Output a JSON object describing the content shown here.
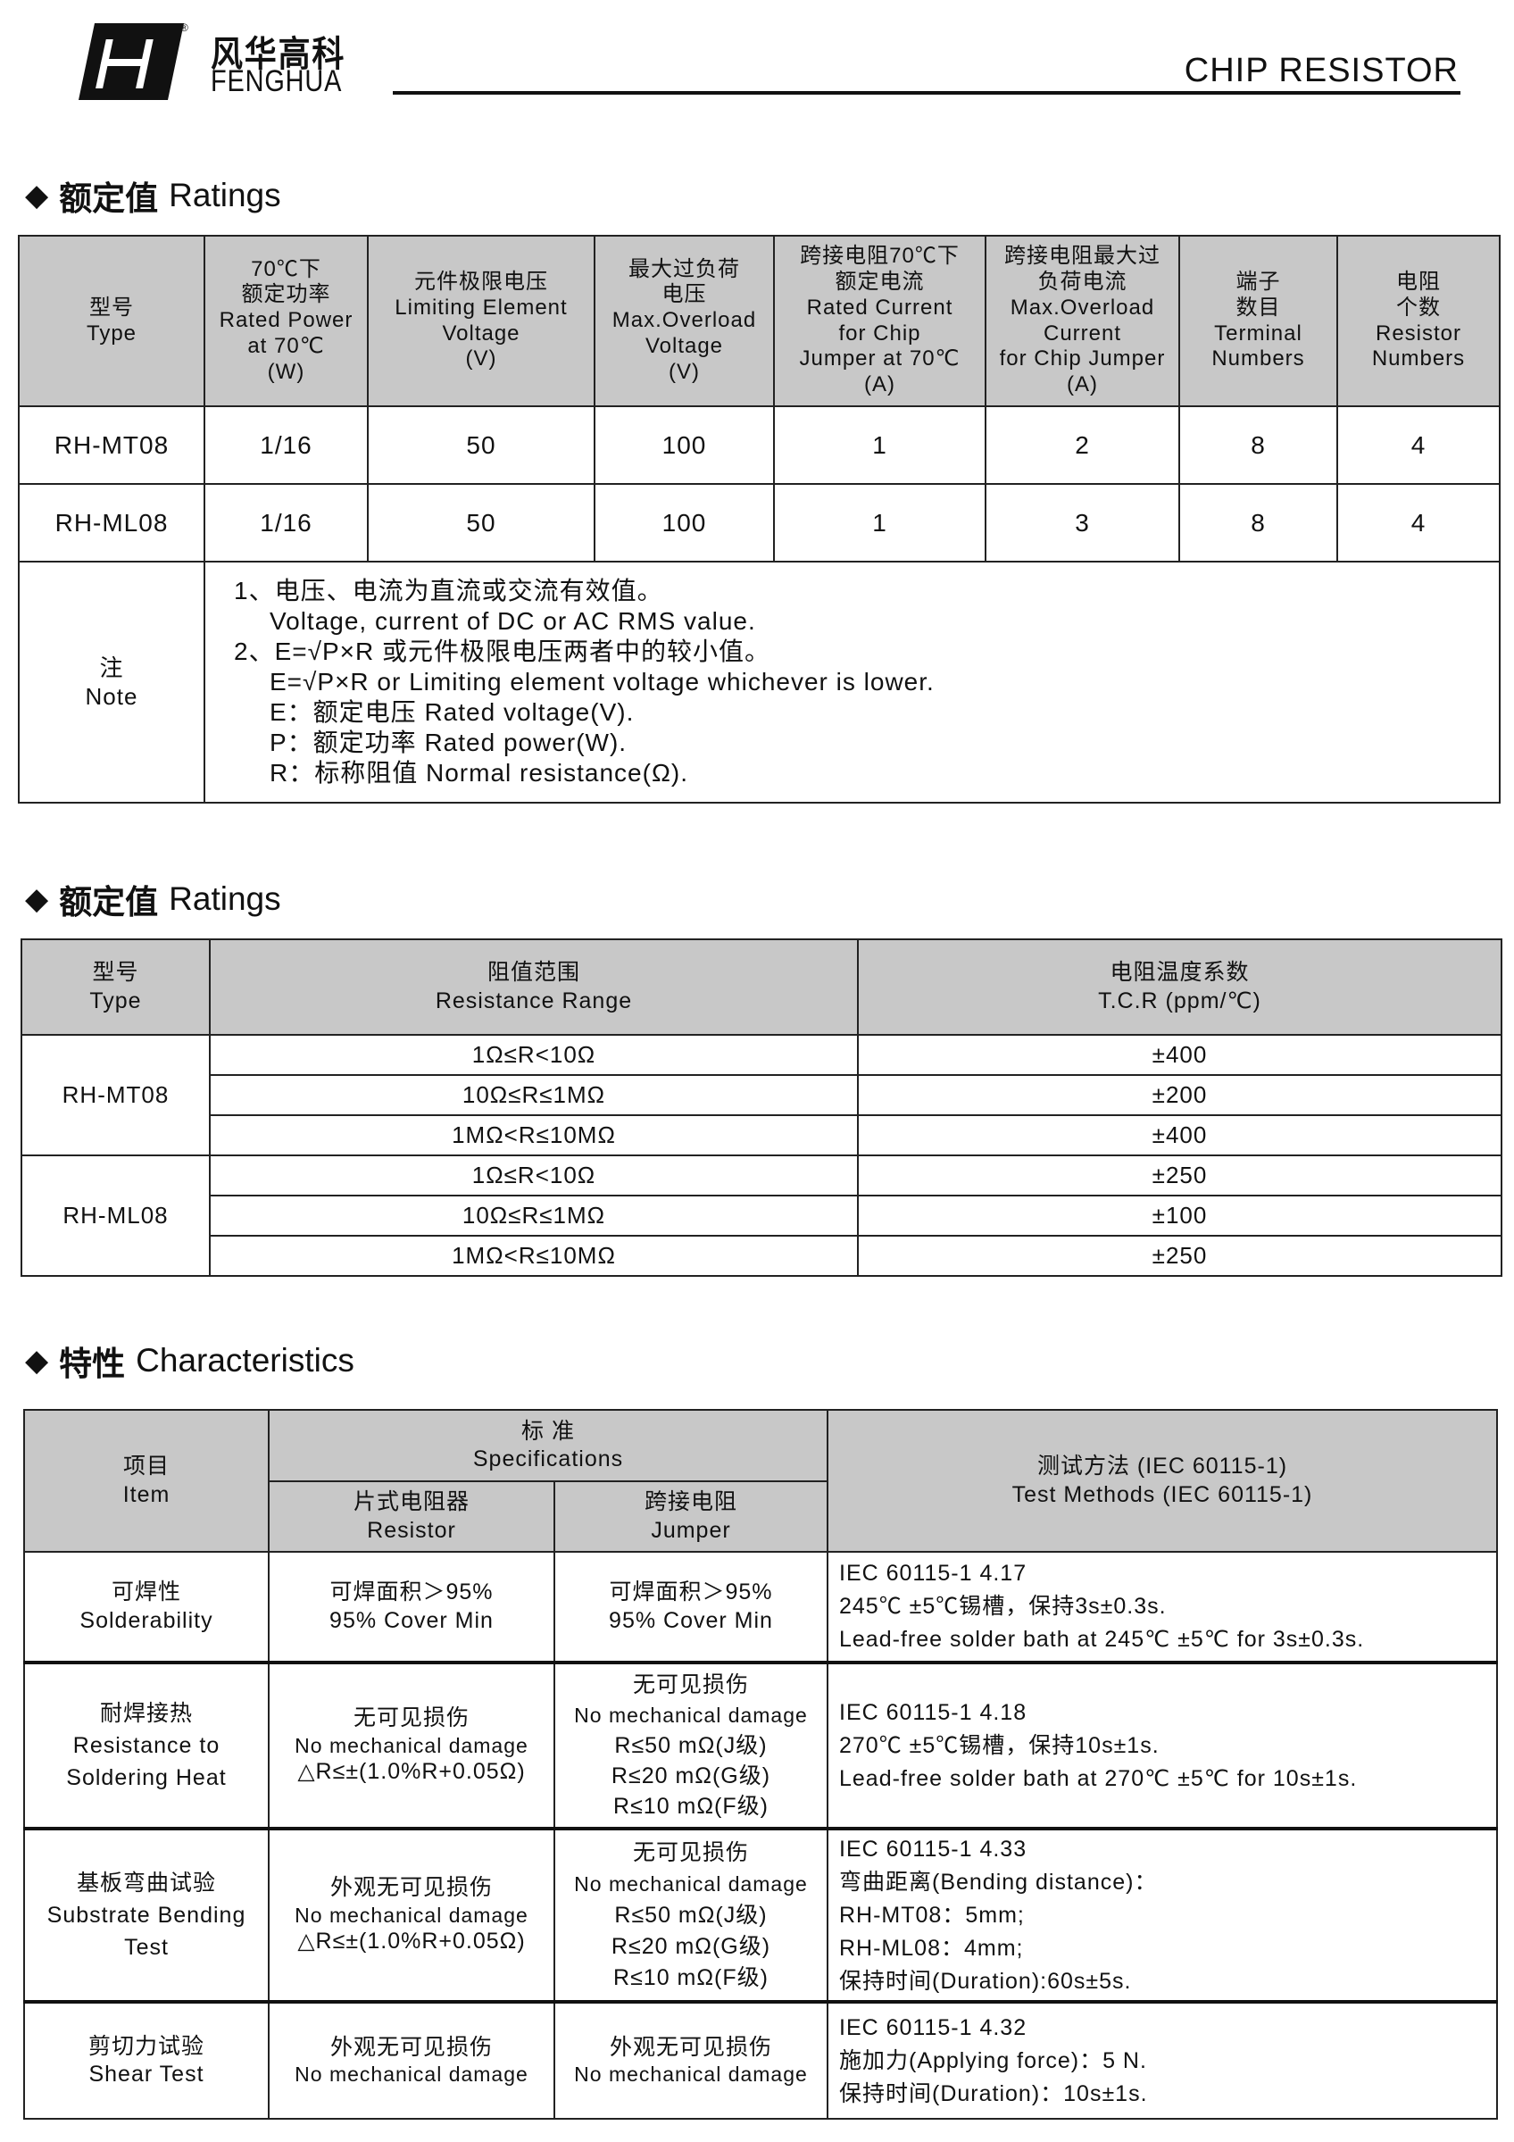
{
  "header": {
    "logo_cn": "风华高科",
    "logo_en": "FENGHUA",
    "registered": "®",
    "doc_category": "CHIP RESISTOR"
  },
  "section1": {
    "title_cn": "额定值",
    "title_en": "Ratings",
    "columns": [
      [
        "型号",
        "Type"
      ],
      [
        "70℃下",
        "额定功率",
        "Rated Power",
        "at 70℃",
        "(W)"
      ],
      [
        "元件极限电压",
        "Limiting Element",
        "Voltage",
        "(V)"
      ],
      [
        "最大过负荷",
        "电压",
        "Max.Overload",
        "Voltage",
        "(V)"
      ],
      [
        "跨接电阻70℃下",
        "额定电流",
        "Rated Current",
        "for Chip",
        "Jumper at 70℃",
        "(A)"
      ],
      [
        "跨接电阻最大过",
        "负荷电流",
        "Max.Overload",
        "Current",
        "for Chip Jumper",
        "(A)"
      ],
      [
        "端子",
        "数目",
        "Terminal",
        "Numbers"
      ],
      [
        "电阻",
        "个数",
        "Resistor",
        "Numbers"
      ]
    ],
    "rows": [
      [
        "RH-MT08",
        "1/16",
        "50",
        "100",
        "1",
        "2",
        "8",
        "4"
      ],
      [
        "RH-ML08",
        "1/16",
        "50",
        "100",
        "1",
        "3",
        "8",
        "4"
      ]
    ],
    "note_label_cn": "注",
    "note_label_en": "Note",
    "notes": [
      "1、电压、电流为直流或交流有效值。",
      "Voltage, current of DC or AC RMS value.",
      "2、E=√P×R 或元件极限电压两者中的较小值。",
      "E=√P×R  or Limiting element voltage whichever is lower.",
      "E：额定电压 Rated voltage(V).",
      "P：额定功率 Rated power(W).",
      "R：标称阻值 Normal resistance(Ω)."
    ]
  },
  "section2": {
    "title_cn": "额定值",
    "title_en": "Ratings",
    "columns": [
      [
        "型号",
        "Type"
      ],
      [
        "阻值范围",
        "Resistance Range"
      ],
      [
        "电阻温度系数",
        "T.C.R (ppm/℃)"
      ]
    ],
    "groups": [
      {
        "type": "RH-MT08",
        "rows": [
          [
            "1Ω≤R<10Ω",
            "±400"
          ],
          [
            "10Ω≤R≤1MΩ",
            "±200"
          ],
          [
            "1MΩ<R≤10MΩ",
            "±400"
          ]
        ]
      },
      {
        "type": "RH-ML08",
        "rows": [
          [
            "1Ω≤R<10Ω",
            "±250"
          ],
          [
            "10Ω≤R≤1MΩ",
            "±100"
          ],
          [
            "1MΩ<R≤10MΩ",
            "±250"
          ]
        ]
      }
    ]
  },
  "section3": {
    "title_cn": "特性",
    "title_en": "Characteristics",
    "head": {
      "item": [
        "项目",
        "Item"
      ],
      "spec": [
        "标 准",
        "Specifications"
      ],
      "resistor": [
        "片式电阻器",
        "Resistor"
      ],
      "jumper": [
        "跨接电阻",
        "Jumper"
      ],
      "method": [
        "测试方法 (IEC 60115-1)",
        "Test Methods (IEC 60115-1)"
      ]
    },
    "rows": [
      {
        "item": [
          "可焊性",
          "Solderability"
        ],
        "resistor": [
          "可焊面积＞95%",
          "95% Cover Min"
        ],
        "jumper": [
          "可焊面积＞95%",
          "95% Cover Min"
        ],
        "method": [
          "IEC 60115-1 4.17",
          "245℃ ±5℃锡槽，保持3s±0.3s.",
          "Lead-free solder bath at 245℃ ±5℃ for 3s±0.3s."
        ]
      },
      {
        "item": [
          "耐焊接热",
          "Resistance to",
          "Soldering Heat"
        ],
        "resistor": [
          "无可见损伤",
          "No mechanical damage",
          "△R≤±(1.0%R+0.05Ω)"
        ],
        "jumper": [
          "无可见损伤",
          "No mechanical damage",
          "R≤50 mΩ(J级)",
          "R≤20 mΩ(G级)",
          "R≤10 mΩ(F级)"
        ],
        "method": [
          "IEC 60115-1 4.18",
          "270℃ ±5℃锡槽，保持10s±1s.",
          "Lead-free solder bath at 270℃ ±5℃ for 10s±1s."
        ]
      },
      {
        "item": [
          "基板弯曲试验",
          "Substrate Bending",
          "Test"
        ],
        "resistor": [
          "外观无可见损伤",
          "No mechanical damage",
          "△R≤±(1.0%R+0.05Ω)"
        ],
        "jumper": [
          "无可见损伤",
          "No mechanical damage",
          "R≤50 mΩ(J级)",
          "R≤20 mΩ(G级)",
          "R≤10 mΩ(F级)"
        ],
        "method": [
          "IEC 60115-1 4.33",
          "弯曲距离(Bending distance)：",
          "RH-MT08：5mm;",
          "RH-ML08：4mm;",
          "保持时间(Duration):60s±5s."
        ]
      },
      {
        "item": [
          "剪切力试验",
          "Shear Test"
        ],
        "resistor": [
          "外观无可见损伤",
          "No mechanical damage"
        ],
        "jumper": [
          "外观无可见损伤",
          "No mechanical damage"
        ],
        "method": [
          "IEC 60115-1 4.32",
          "施加力(Applying force)：5 N.",
          "保持时间(Duration)：10s±1s."
        ]
      }
    ]
  },
  "colors": {
    "header_fill": "#c8c8c8",
    "line": "#111111"
  }
}
